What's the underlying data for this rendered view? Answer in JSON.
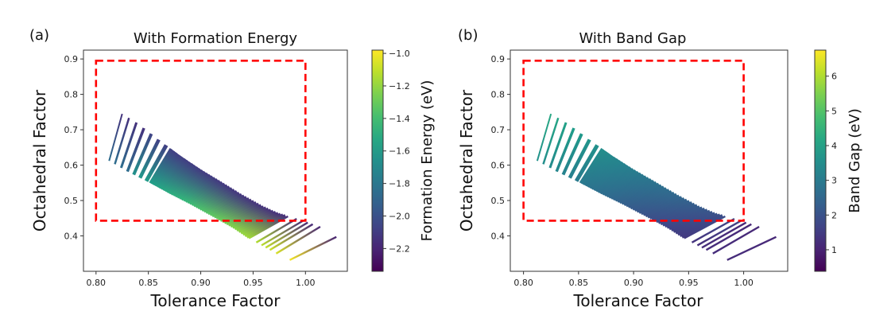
{
  "chart_data": [
    {
      "type": "scatter",
      "panel_label": "(a)",
      "title": "With Formation Energy",
      "xlabel": "Tolerance Factor",
      "ylabel": "Octahedral Factor",
      "xlim": [
        0.788,
        1.04
      ],
      "ylim": [
        0.3,
        0.925
      ],
      "xticks": [
        0.8,
        0.85,
        0.9,
        0.95,
        1.0
      ],
      "xtick_labels": [
        "0.80",
        "0.85",
        "0.90",
        "0.95",
        "1.00"
      ],
      "yticks": [
        0.4,
        0.5,
        0.6,
        0.7,
        0.8,
        0.9
      ],
      "ytick_labels": [
        "0.4",
        "0.5",
        "0.6",
        "0.7",
        "0.8",
        "0.9"
      ],
      "grid": false,
      "colormap": "viridis",
      "colorbar": {
        "label": "Formation Energy (eV)",
        "range": [
          -2.34,
          -0.98
        ],
        "ticks": [
          -1.0,
          -1.2,
          -1.4,
          -1.6,
          -1.8,
          -2.0,
          -2.2
        ],
        "tick_labels": [
          "−1.0",
          "−1.2",
          "−1.4",
          "−1.6",
          "−1.8",
          "−2.0",
          "−2.2"
        ]
      },
      "region_box": {
        "x": [
          0.8,
          1.0
        ],
        "y": [
          0.443,
          0.895
        ],
        "color": "#ff0000",
        "style": "dashed"
      },
      "value_trend": {
        "upper_value": -2.2,
        "lower_value": -1.1,
        "note": "lower octahedral / higher tolerance points are less negative (yellow); upper band is more negative (purple)"
      }
    },
    {
      "type": "scatter",
      "panel_label": "(b)",
      "title": "With Band Gap",
      "xlabel": "Tolerance Factor",
      "ylabel": "Octahedral Factor",
      "xlim": [
        0.788,
        1.04
      ],
      "ylim": [
        0.3,
        0.925
      ],
      "xticks": [
        0.8,
        0.85,
        0.9,
        0.95,
        1.0
      ],
      "xtick_labels": [
        "0.80",
        "0.85",
        "0.90",
        "0.95",
        "1.00"
      ],
      "yticks": [
        0.4,
        0.5,
        0.6,
        0.7,
        0.8,
        0.9
      ],
      "ytick_labels": [
        "0.4",
        "0.5",
        "0.6",
        "0.7",
        "0.8",
        "0.9"
      ],
      "grid": false,
      "colormap": "viridis",
      "colorbar": {
        "label": "Band Gap (eV)",
        "range": [
          0.38,
          6.75
        ],
        "ticks": [
          1,
          2,
          3,
          4,
          5,
          6
        ],
        "tick_labels": [
          "1",
          "2",
          "3",
          "4",
          "5",
          "6"
        ]
      },
      "region_box": {
        "x": [
          0.8,
          1.0
        ],
        "y": [
          0.443,
          0.895
        ],
        "color": "#ff0000",
        "style": "dashed"
      },
      "value_trend": {
        "left_value": 3.8,
        "right_value": 1.0,
        "note": "left streaks teal/green (~3-5 eV), right-lower streaks dark purple (~1 eV)"
      }
    }
  ],
  "streaks": {
    "upper_envelope": [
      [
        0.825,
        0.745
      ],
      [
        0.84,
        0.718
      ],
      [
        0.86,
        0.672
      ],
      [
        0.88,
        0.628
      ],
      [
        0.9,
        0.588
      ],
      [
        0.92,
        0.552
      ],
      [
        0.94,
        0.515
      ],
      [
        0.96,
        0.482
      ],
      [
        0.975,
        0.462
      ],
      [
        0.99,
        0.45
      ],
      [
        1.005,
        0.435
      ],
      [
        1.015,
        0.425
      ],
      [
        1.028,
        0.4
      ]
    ],
    "lower_envelope": [
      [
        0.8125,
        0.612
      ],
      [
        0.83,
        0.582
      ],
      [
        0.85,
        0.552
      ],
      [
        0.87,
        0.52
      ],
      [
        0.89,
        0.49
      ],
      [
        0.91,
        0.458
      ],
      [
        0.93,
        0.425
      ],
      [
        0.945,
        0.395
      ],
      [
        0.955,
        0.378
      ],
      [
        0.965,
        0.362
      ],
      [
        0.975,
        0.345
      ],
      [
        0.985,
        0.332
      ]
    ],
    "count": 62,
    "sparse_left": [
      0.8125,
      0.818,
      0.824,
      0.83,
      0.836,
      0.842,
      0.848
    ],
    "sparse_right": [
      0.946,
      0.953,
      0.958,
      0.962,
      0.966,
      0.972,
      0.985
    ]
  }
}
